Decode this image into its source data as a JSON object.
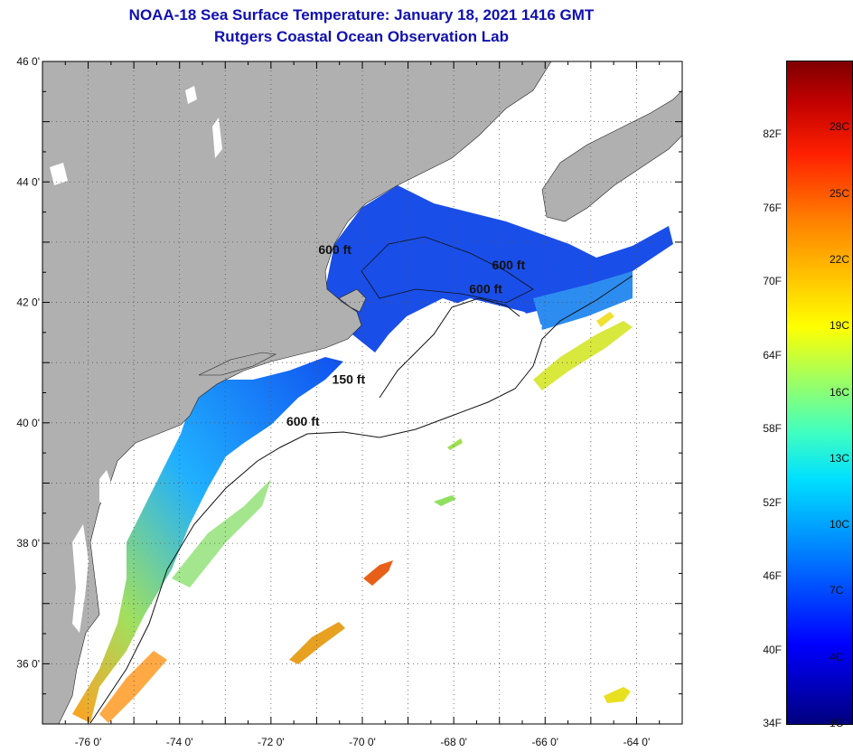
{
  "title": {
    "line1": "NOAA-18 Sea Surface Temperature:  January 18, 2021 1416 GMT",
    "line2": "Rutgers Coastal Ocean Observation Lab"
  },
  "map": {
    "lon_range": [
      -77,
      -63
    ],
    "lat_range": [
      35,
      46
    ],
    "lon_ticks": [
      {
        "value": -76,
        "label": "-76 0'"
      },
      {
        "value": -74,
        "label": "-74 0'"
      },
      {
        "value": -72,
        "label": "-72 0'"
      },
      {
        "value": -70,
        "label": "-70 0'"
      },
      {
        "value": -68,
        "label": "-68 0'"
      },
      {
        "value": -66,
        "label": "-66 0'"
      },
      {
        "value": -64,
        "label": "-64 0'"
      }
    ],
    "lat_ticks": [
      {
        "value": 46,
        "label": "46 0'"
      },
      {
        "value": 44,
        "label": "44 0'"
      },
      {
        "value": 42,
        "label": "42 0'"
      },
      {
        "value": 40,
        "label": "40 0'"
      },
      {
        "value": 38,
        "label": "38 0'"
      },
      {
        "value": 36,
        "label": "36 0'"
      }
    ],
    "contour_labels": [
      {
        "text": "600 ft",
        "lon": -70.6,
        "lat": 42.8
      },
      {
        "text": "600 ft",
        "lon": -66.8,
        "lat": 42.55
      },
      {
        "text": "600 ft",
        "lon": -67.3,
        "lat": 42.15
      },
      {
        "text": "150 ft",
        "lon": -70.3,
        "lat": 40.65
      },
      {
        "text": "600 ft",
        "lon": -71.3,
        "lat": 39.95
      }
    ],
    "colors": {
      "land": "#b0b0b0",
      "cloud": "#ffffff",
      "cold_water": "#1040e0",
      "grid": "#555555"
    }
  },
  "colorbar": {
    "fahrenheit": [
      "34F",
      "40F",
      "46F",
      "52F",
      "58F",
      "64F",
      "70F",
      "76F",
      "82F"
    ],
    "celsius": [
      "1C",
      "4C",
      "7C",
      "10C",
      "13C",
      "16C",
      "19C",
      "22C",
      "25C",
      "28C"
    ]
  }
}
